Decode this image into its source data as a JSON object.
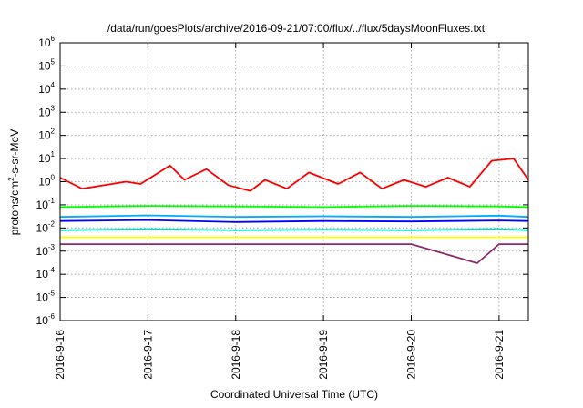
{
  "chart_data": {
    "type": "line",
    "title": "/data/run/goesPlots/archive/2016-09-21/07:00/flux/../flux/5daysMoonFluxes.txt",
    "xlabel": "Coordinated Universal Time (UTC)",
    "ylabel_parts": [
      "protons/cm",
      "2",
      "-s-sr-MeV"
    ],
    "y_scale": "log",
    "ylim": [
      1e-06,
      1000000.0
    ],
    "y_ticks": [
      {
        "base": "10",
        "exp": "-6",
        "value": -6
      },
      {
        "base": "10",
        "exp": "-5",
        "value": -5
      },
      {
        "base": "10",
        "exp": "-4",
        "value": -4
      },
      {
        "base": "10",
        "exp": "-3",
        "value": -3
      },
      {
        "base": "10",
        "exp": "-2",
        "value": -2
      },
      {
        "base": "10",
        "exp": "-1",
        "value": -1
      },
      {
        "base": "10",
        "exp": "0",
        "value": 0
      },
      {
        "base": "10",
        "exp": "1",
        "value": 1
      },
      {
        "base": "10",
        "exp": "2",
        "value": 2
      },
      {
        "base": "10",
        "exp": "3",
        "value": 3
      },
      {
        "base": "10",
        "exp": "4",
        "value": 4
      },
      {
        "base": "10",
        "exp": "5",
        "value": 5
      },
      {
        "base": "10",
        "exp": "6",
        "value": 6
      }
    ],
    "xlim": [
      "2016-09-16T00:00",
      "2016-09-21T08:00"
    ],
    "x_ticks": [
      "2016-9-16",
      "2016-9-17",
      "2016-9-18",
      "2016-9-19",
      "2016-9-20",
      "2016-9-21"
    ],
    "grid": true,
    "legend": "none",
    "series": [
      {
        "color": "#ff0000",
        "x": [
          "2016-09-16T00:00",
          "2016-09-16T06:00",
          "2016-09-16T12:00",
          "2016-09-16T18:00",
          "2016-09-16T22:00",
          "2016-09-17T06:00",
          "2016-09-17T10:00",
          "2016-09-17T16:00",
          "2016-09-17T22:00",
          "2016-09-18T04:00",
          "2016-09-18T08:00",
          "2016-09-18T14:00",
          "2016-09-18T20:00",
          "2016-09-19T04:00",
          "2016-09-19T10:00",
          "2016-09-19T16:00",
          "2016-09-19T22:00",
          "2016-09-20T04:00",
          "2016-09-20T10:00",
          "2016-09-20T16:00",
          "2016-09-20T22:00",
          "2016-09-21T04:00",
          "2016-09-21T08:00"
        ],
        "y": [
          1.5,
          0.5,
          0.7,
          1.0,
          0.8,
          5.0,
          1.2,
          3.5,
          0.7,
          0.4,
          1.2,
          0.5,
          2.5,
          0.8,
          2.5,
          0.5,
          1.2,
          0.6,
          1.5,
          0.6,
          8.0,
          10.0,
          1.2
        ]
      },
      {
        "color": "#00ff00",
        "x": [
          "2016-09-16T00:00",
          "2016-09-17T00:00",
          "2016-09-18T00:00",
          "2016-09-19T00:00",
          "2016-09-20T00:00",
          "2016-09-21T00:00",
          "2016-09-21T08:00"
        ],
        "y": [
          0.08,
          0.09,
          0.085,
          0.08,
          0.09,
          0.085,
          0.08
        ]
      },
      {
        "color": "#00aaff",
        "x": [
          "2016-09-16T00:00",
          "2016-09-17T00:00",
          "2016-09-18T00:00",
          "2016-09-19T00:00",
          "2016-09-20T00:00",
          "2016-09-21T00:00",
          "2016-09-21T08:00"
        ],
        "y": [
          0.03,
          0.035,
          0.03,
          0.032,
          0.03,
          0.034,
          0.03
        ]
      },
      {
        "color": "#0000ff",
        "x": [
          "2016-09-16T00:00",
          "2016-09-17T00:00",
          "2016-09-18T00:00",
          "2016-09-19T00:00",
          "2016-09-20T00:00",
          "2016-09-21T00:00",
          "2016-09-21T08:00"
        ],
        "y": [
          0.02,
          0.022,
          0.018,
          0.02,
          0.019,
          0.021,
          0.02
        ]
      },
      {
        "color": "#00ddbb",
        "x": [
          "2016-09-16T00:00",
          "2016-09-17T00:00",
          "2016-09-18T00:00",
          "2016-09-19T00:00",
          "2016-09-20T00:00",
          "2016-09-21T00:00",
          "2016-09-21T08:00"
        ],
        "y": [
          0.008,
          0.009,
          0.008,
          0.0085,
          0.008,
          0.009,
          0.008
        ]
      },
      {
        "color": "#ffff00",
        "x": [
          "2016-09-16T00:00",
          "2016-09-17T00:00",
          "2016-09-18T00:00",
          "2016-09-19T00:00",
          "2016-09-20T00:00",
          "2016-09-21T00:00",
          "2016-09-21T08:00"
        ],
        "y": [
          0.004,
          0.004,
          0.004,
          0.004,
          0.004,
          0.004,
          0.004
        ]
      },
      {
        "color": "#8b2a6b",
        "x": [
          "2016-09-16T00:00",
          "2016-09-17T00:00",
          "2016-09-18T00:00",
          "2016-09-19T00:00",
          "2016-09-20T00:00",
          "2016-09-20T18:00",
          "2016-09-21T00:00",
          "2016-09-21T08:00"
        ],
        "y": [
          0.002,
          0.002,
          0.002,
          0.002,
          0.002,
          0.0003,
          0.002,
          0.002
        ]
      }
    ]
  }
}
